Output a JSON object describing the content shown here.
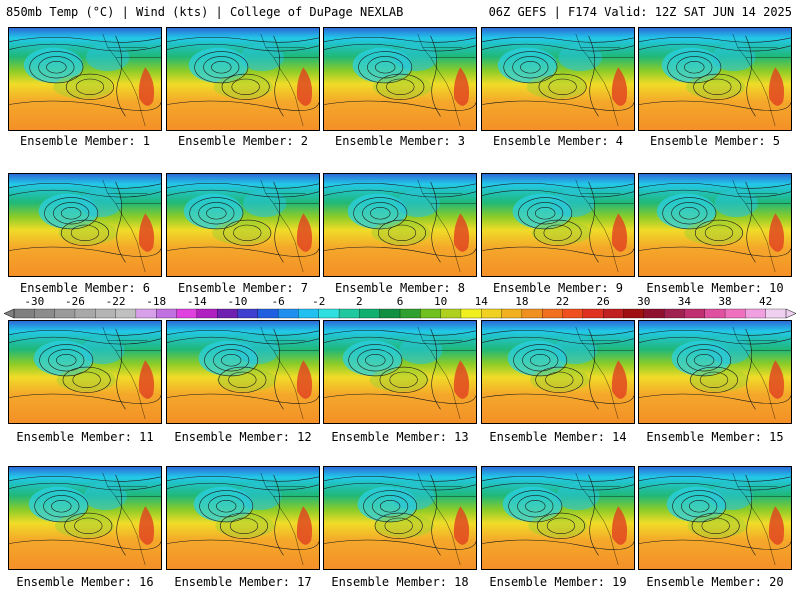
{
  "header": {
    "left_text": "850mb Temp (°C) | Wind (kts) | College of DuPage NEXLAB",
    "right_text": "06Z GEFS | F174 Valid: 12Z SAT JUN 14 2025"
  },
  "members": [
    "Ensemble Member: 1",
    "Ensemble Member: 2",
    "Ensemble Member: 3",
    "Ensemble Member: 4",
    "Ensemble Member: 5",
    "Ensemble Member: 6",
    "Ensemble Member: 7",
    "Ensemble Member: 8",
    "Ensemble Member: 9",
    "Ensemble Member: 10",
    "Ensemble Member: 11",
    "Ensemble Member: 12",
    "Ensemble Member: 13",
    "Ensemble Member: 14",
    "Ensemble Member: 15",
    "Ensemble Member: 16",
    "Ensemble Member: 17",
    "Ensemble Member: 18",
    "Ensemble Member: 19",
    "Ensemble Member: 20"
  ],
  "colorbar": {
    "ticks": [
      "-30",
      "-26",
      "-22",
      "-18",
      "-14",
      "-10",
      "-6",
      "-2",
      "2",
      "6",
      "10",
      "14",
      "18",
      "22",
      "26",
      "30",
      "34",
      "38",
      "42"
    ],
    "colors": [
      "#808080",
      "#8c8c8c",
      "#9a9a9a",
      "#a8a8a8",
      "#b4b4b4",
      "#c0c0c0",
      "#d8a0e8",
      "#c070e0",
      "#e040e0",
      "#b020c0",
      "#7020b0",
      "#4040d0",
      "#2060e0",
      "#2090f0",
      "#20c0f0",
      "#30e0e0",
      "#20c8a0",
      "#10b070",
      "#109040",
      "#30a030",
      "#70c020",
      "#b0d020",
      "#f0f020",
      "#f0d020",
      "#f0b020",
      "#f09020",
      "#f07020",
      "#f05020",
      "#e03020",
      "#c02020",
      "#a01010",
      "#901030",
      "#a02050",
      "#c03070",
      "#e050a0",
      "#f070c0",
      "#f0a0e0",
      "#f0d0f0"
    ]
  }
}
